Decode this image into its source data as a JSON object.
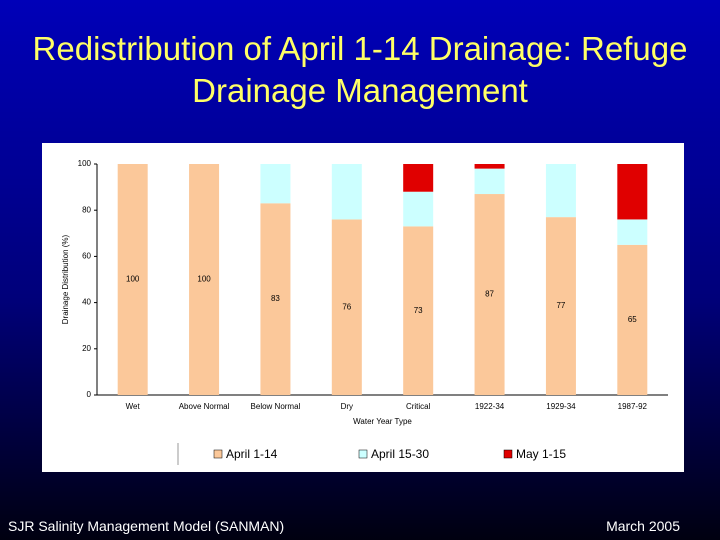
{
  "chart_data": {
    "type": "bar",
    "stacked": true,
    "title": "Redistribution of April 1-14 Drainage: Refuge Drainage Management",
    "xlabel": "Water Year Type",
    "ylabel": "Drainage Distribution (%)",
    "categories": [
      "Wet",
      "Above Normal",
      "Below Normal",
      "Dry",
      "Critical",
      "1922-34",
      "1929-34",
      "1987-92"
    ],
    "series": [
      {
        "name": "April 1-14",
        "color": "#fbc89a",
        "values": [
          100,
          100,
          83,
          76,
          73,
          87,
          77,
          65
        ]
      },
      {
        "name": "April 15-30",
        "color": "#ccffff",
        "values": [
          0,
          0,
          17,
          24,
          15,
          11,
          23,
          11
        ]
      },
      {
        "name": "May 1-15",
        "color": "#e00000",
        "values": [
          0,
          0,
          0,
          0,
          12,
          2,
          0,
          24
        ]
      }
    ],
    "data_labels_series": 0,
    "ylim": [
      0,
      100
    ],
    "yticks": [
      0,
      20,
      40,
      60,
      80,
      100
    ]
  },
  "footer": {
    "left": "SJR Salinity Management Model (SANMAN)",
    "right": "March 2005"
  }
}
